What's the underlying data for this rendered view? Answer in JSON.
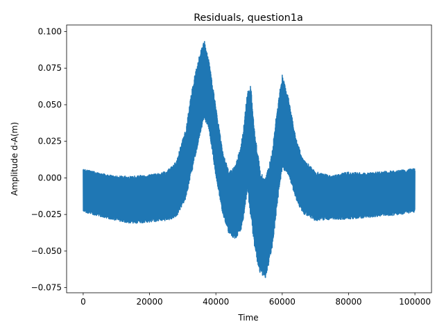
{
  "chart_data": {
    "type": "line",
    "title": "Residuals, question1a",
    "xlabel": "Time",
    "ylabel": "Amplitude d-A(m)",
    "xlim": [
      -5000,
      105000
    ],
    "ylim": [
      -0.0785,
      0.1045
    ],
    "grid": false,
    "x_ticks": [
      0,
      20000,
      40000,
      60000,
      80000,
      100000
    ],
    "x_tick_labels": [
      "0",
      "20000",
      "40000",
      "60000",
      "80000",
      "100000"
    ],
    "y_ticks": [
      -0.075,
      -0.05,
      -0.025,
      0.0,
      0.025,
      0.05,
      0.075,
      0.1
    ],
    "y_tick_labels": [
      "−0.075",
      "−0.050",
      "−0.025",
      "0.000",
      "0.025",
      "0.050",
      "0.075",
      "0.100"
    ],
    "series": [
      {
        "color": "#1f77b4",
        "x": [
          0,
          5000,
          10000,
          15000,
          20000,
          25000,
          28000,
          31000,
          33000,
          35000,
          36500,
          38000,
          40000,
          42000,
          44000,
          46000,
          48000,
          49500,
          50500,
          52000,
          53500,
          55000,
          57000,
          58500,
          60000,
          62000,
          64000,
          66000,
          70000,
          75000,
          80000,
          85000,
          90000,
          95000,
          100000
        ],
        "upper": [
          0.007,
          0.004,
          0.002,
          0.002,
          0.003,
          0.005,
          0.012,
          0.035,
          0.065,
          0.085,
          0.096,
          0.08,
          0.05,
          0.02,
          0.005,
          0.01,
          0.03,
          0.06,
          0.065,
          0.03,
          0.005,
          0.002,
          0.02,
          0.05,
          0.072,
          0.055,
          0.03,
          0.015,
          0.005,
          0.002,
          0.005,
          0.004,
          0.005,
          0.006,
          0.007
        ],
        "lower": [
          -0.024,
          -0.027,
          -0.03,
          -0.032,
          -0.031,
          -0.03,
          -0.028,
          -0.015,
          0.005,
          0.025,
          0.04,
          0.03,
          0.0,
          -0.025,
          -0.04,
          -0.043,
          -0.035,
          -0.01,
          -0.03,
          -0.055,
          -0.068,
          -0.07,
          -0.05,
          -0.02,
          0.005,
          0.0,
          -0.015,
          -0.025,
          -0.03,
          -0.029,
          -0.029,
          -0.028,
          -0.027,
          -0.026,
          -0.024
        ]
      }
    ]
  }
}
